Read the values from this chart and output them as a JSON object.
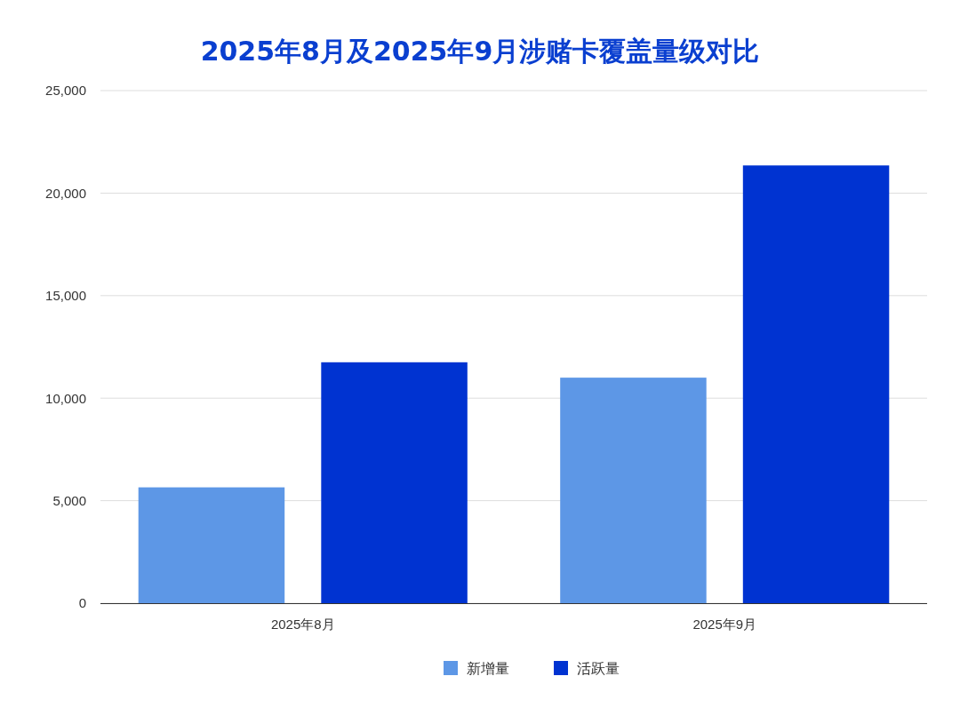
{
  "chart_data": {
    "type": "bar",
    "title": "2025年8月及2025年9月涉赌卡覆盖量级对比",
    "categories": [
      "2025年8月",
      "2025年9月"
    ],
    "series": [
      {
        "name": "新增量",
        "color": "#5d97e6",
        "values": [
          5650,
          11000
        ]
      },
      {
        "name": "活跃量",
        "color": "#0033d1",
        "values": [
          11750,
          21350
        ]
      }
    ],
    "ylim": [
      0,
      25000
    ],
    "yticks": [
      0,
      {
        "value": 5000,
        "label": "5,000"
      },
      {
        "value": 10000,
        "label": "10,000"
      },
      {
        "value": 15000,
        "label": "15,000"
      },
      {
        "value": 20000,
        "label": "20,000"
      },
      {
        "value": 25000,
        "label": "25,000"
      }
    ],
    "grid": "y",
    "legend": "bottom"
  }
}
